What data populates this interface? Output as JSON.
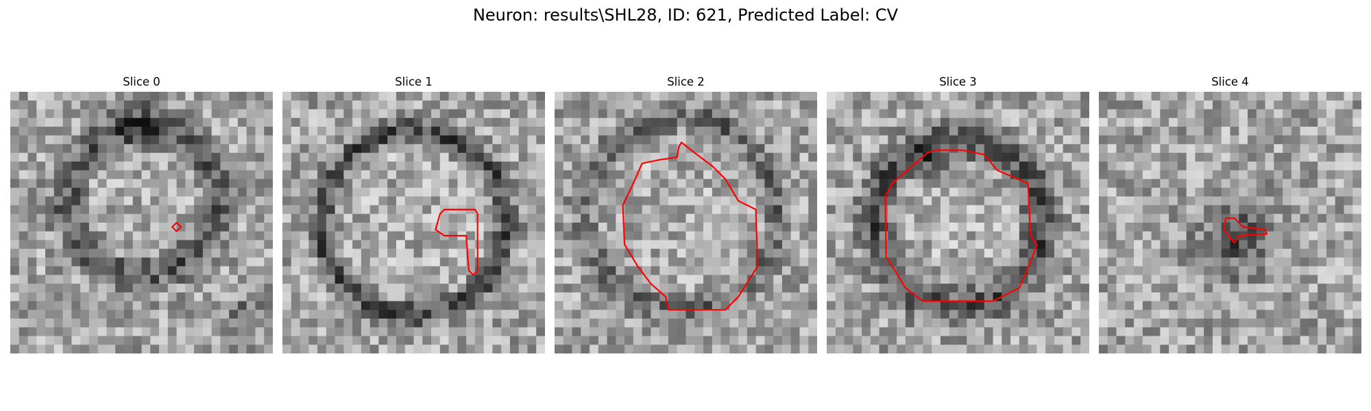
{
  "figure": {
    "title": "Neuron: results\\SHL28, ID: 621, Predicted Label: CV"
  },
  "panels": [
    {
      "title": "Slice 0"
    },
    {
      "title": "Slice 1"
    },
    {
      "title": "Slice 2"
    },
    {
      "title": "Slice 3"
    },
    {
      "title": "Slice 4"
    }
  ],
  "colors": {
    "background": "#ffffff",
    "contour": "#ff0000",
    "text": "#000000"
  }
}
